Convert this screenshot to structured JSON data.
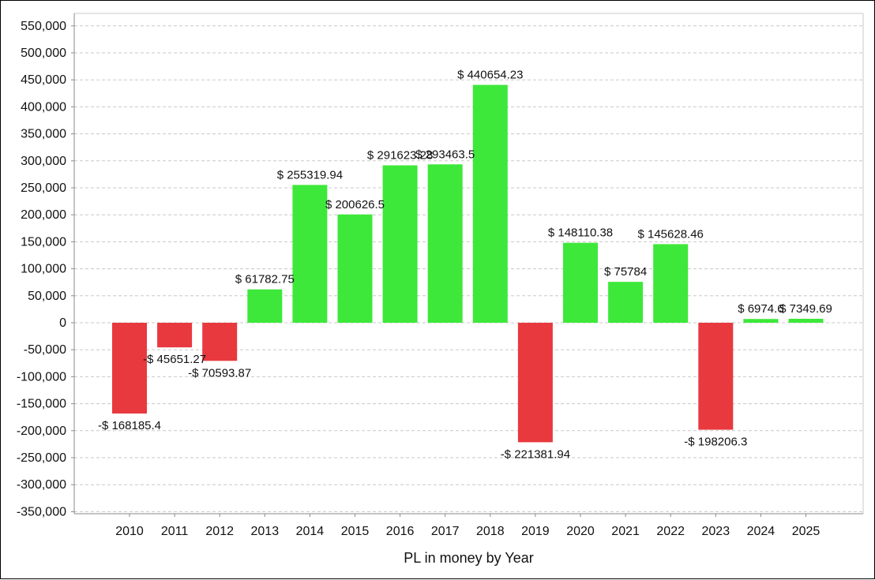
{
  "chart_data": {
    "type": "bar",
    "title": "",
    "xlabel": "PL in money by Year",
    "ylabel": "",
    "ylim": [
      -350000,
      575000
    ],
    "y_ticks": [
      -350000,
      -300000,
      -250000,
      -200000,
      -150000,
      -100000,
      -50000,
      0,
      50000,
      100000,
      150000,
      200000,
      250000,
      300000,
      350000,
      400000,
      450000,
      500000,
      550000
    ],
    "y_tick_labels": [
      "-350,000",
      "-300,000",
      "-250,000",
      "-200,000",
      "-150,000",
      "-100,000",
      "-50,000",
      "0",
      "50,000",
      "100,000",
      "150,000",
      "200,000",
      "250,000",
      "300,000",
      "350,000",
      "400,000",
      "450,000",
      "500,000",
      "550,000"
    ],
    "grid": true,
    "categories": [
      "2010",
      "2011",
      "2012",
      "2013",
      "2014",
      "2015",
      "2016",
      "2017",
      "2018",
      "2019",
      "2020",
      "2021",
      "2022",
      "2023",
      "2024",
      "2025"
    ],
    "values": [
      -168185.4,
      -45651.27,
      -70593.87,
      61782.75,
      255319.94,
      200626.5,
      291623.28,
      293463.5,
      440654.23,
      -221381.94,
      148110.38,
      75784,
      145628.46,
      -198206.3,
      6974.6,
      7349.69
    ],
    "data_labels": [
      "-$ 168185.4",
      "-$ 45651.27",
      "-$ 70593.87",
      "$ 61782.75",
      "$ 255319.94",
      "$ 200626.5",
      "$ 291623.28",
      "$ 293463.5",
      "$ 440654.23",
      "-$ 221381.94",
      "$ 148110.38",
      "$ 75784",
      "$ 145628.46",
      "-$ 198206.3",
      "$ 6974.6",
      "$ 7349.69"
    ],
    "colors": {
      "positive": "#3ee83a",
      "negative": "#e8393e",
      "grid": "#c8c8c8",
      "axis": "#888888"
    }
  }
}
